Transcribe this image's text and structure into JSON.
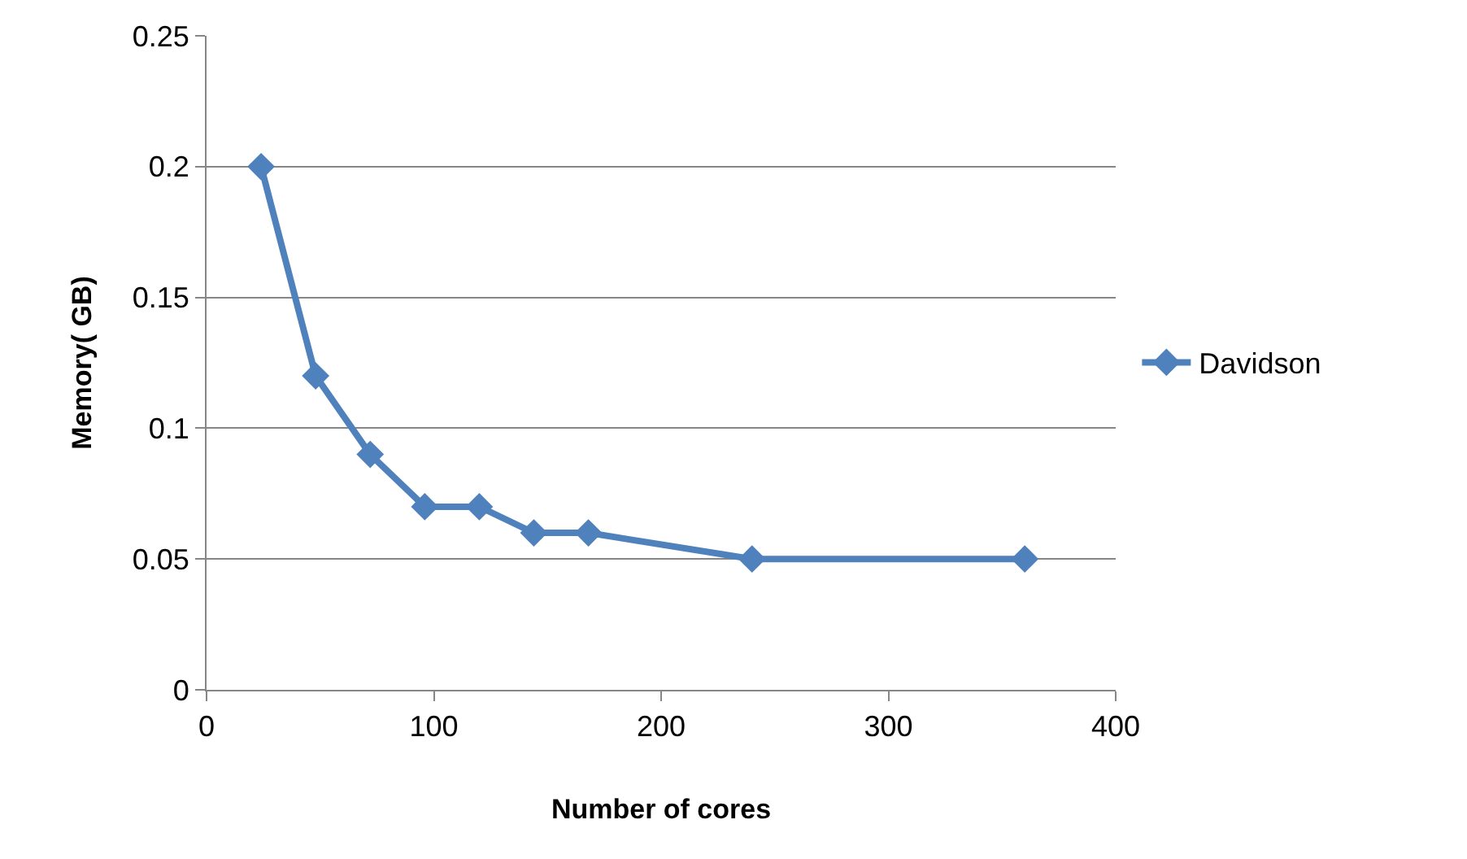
{
  "chart_data": {
    "type": "line",
    "xlabel": "Number of cores",
    "ylabel": "Memory( GB)",
    "xlim": [
      0,
      400
    ],
    "xticks": [
      0,
      100,
      200,
      300,
      400
    ],
    "ylim": [
      0,
      0.25
    ],
    "yticks": [
      0,
      0.05,
      0.1,
      0.15,
      0.2,
      0.25
    ],
    "x": [
      24,
      48,
      72,
      96,
      120,
      144,
      168,
      240,
      360
    ],
    "series": [
      {
        "name": "Davidson",
        "color": "#4f81bd",
        "values": [
          0.2,
          0.12,
          0.09,
          0.07,
          0.07,
          0.06,
          0.06,
          0.05,
          0.05
        ]
      }
    ],
    "grid": "y",
    "legend": "right",
    "marker": "diamond",
    "line_style": "solid"
  }
}
